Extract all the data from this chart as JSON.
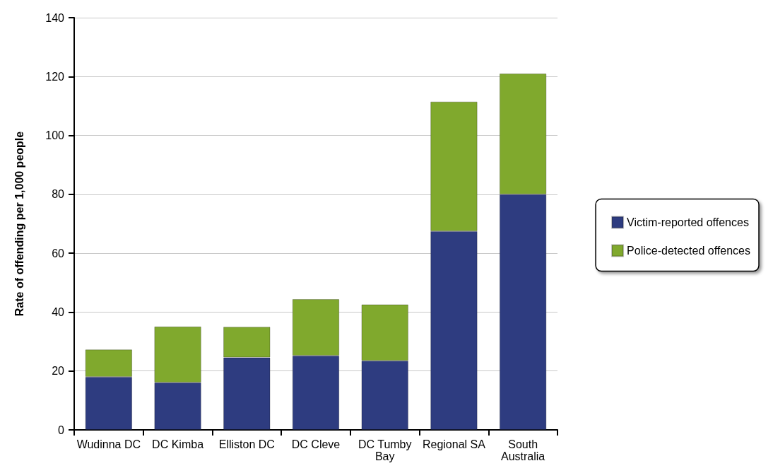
{
  "chart_data": {
    "type": "bar",
    "stacked": true,
    "ylabel": "Rate of offending per 1,000 people",
    "categories": [
      "Wudinna DC",
      "DC Kimba",
      "Elliston DC",
      "DC Cleve",
      "DC Tumby Bay",
      "Regional SA",
      "South Australia"
    ],
    "series": [
      {
        "name": "Victim-reported offences",
        "color": "#2e3c80",
        "values": [
          18,
          16.1,
          24.6,
          25.2,
          23.5,
          67.5,
          80
        ]
      },
      {
        "name": "Police-detected offences",
        "color": "#80a92d",
        "values": [
          9.3,
          19,
          10.4,
          19.2,
          19.1,
          44,
          41
        ]
      }
    ],
    "ylim": [
      0,
      140
    ],
    "yticks": [
      0,
      20,
      40,
      60,
      80,
      100,
      120,
      140
    ],
    "grid": "y",
    "legend": "right"
  }
}
